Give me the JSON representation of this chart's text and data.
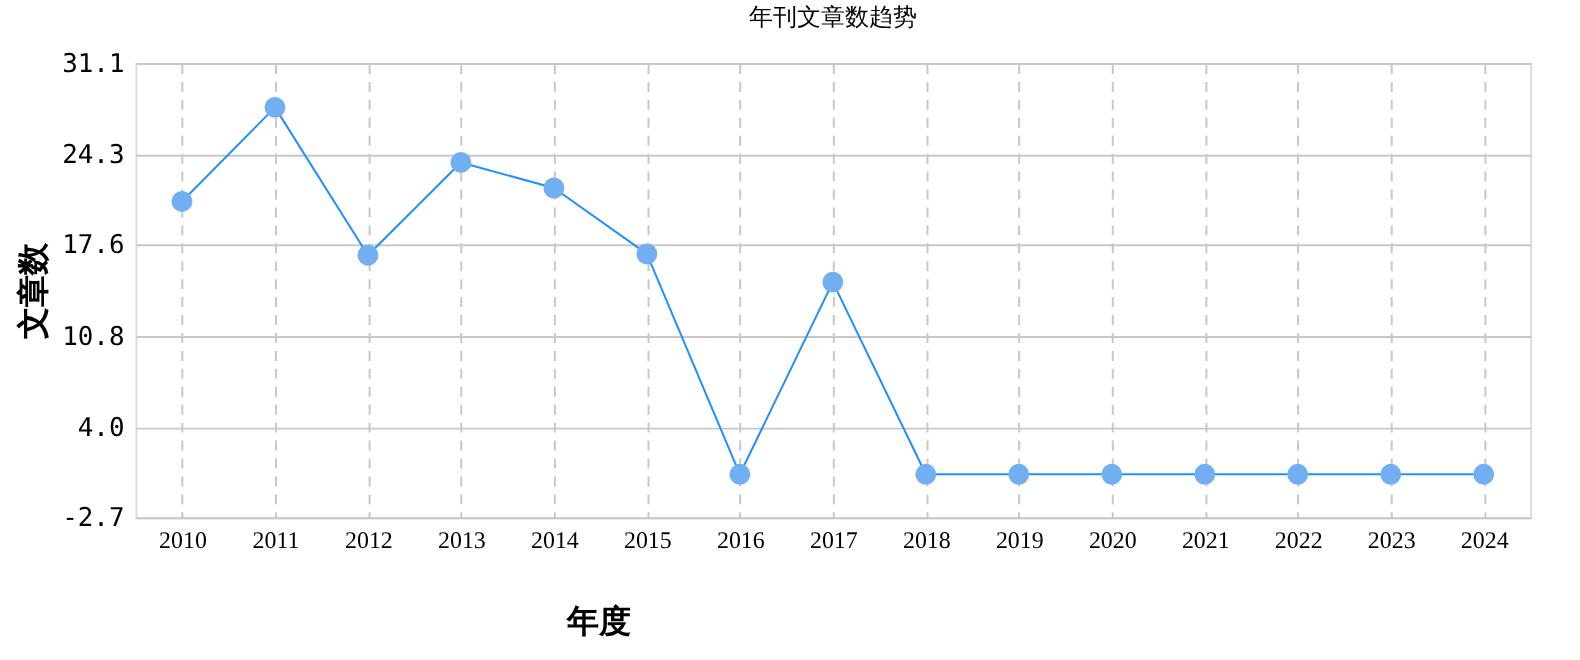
{
  "chart_data": {
    "type": "line",
    "title": "年刊文章数趋势",
    "xlabel": "年度",
    "ylabel": "文章数",
    "categories": [
      "2010",
      "2011",
      "2012",
      "2013",
      "2014",
      "2015",
      "2016",
      "2017",
      "2018",
      "2019",
      "2020",
      "2021",
      "2022",
      "2023",
      "2024"
    ],
    "series": [
      {
        "color": "#1e90ff",
        "values": [
          20.8,
          27.8,
          16.8,
          23.7,
          21.8,
          16.9,
          0.5,
          14.8,
          0.5,
          0.5,
          0.5,
          0.5,
          0.5,
          0.5,
          0.5
        ]
      }
    ],
    "marker": "circle",
    "line_style": "solid",
    "grid": true,
    "ylim": [
      -2.7,
      31.1
    ],
    "yticks": [
      -2.7,
      {
        "value": 4,
        "label": "4.0"
      },
      10.8,
      17.6,
      24.3,
      31.1
    ]
  }
}
